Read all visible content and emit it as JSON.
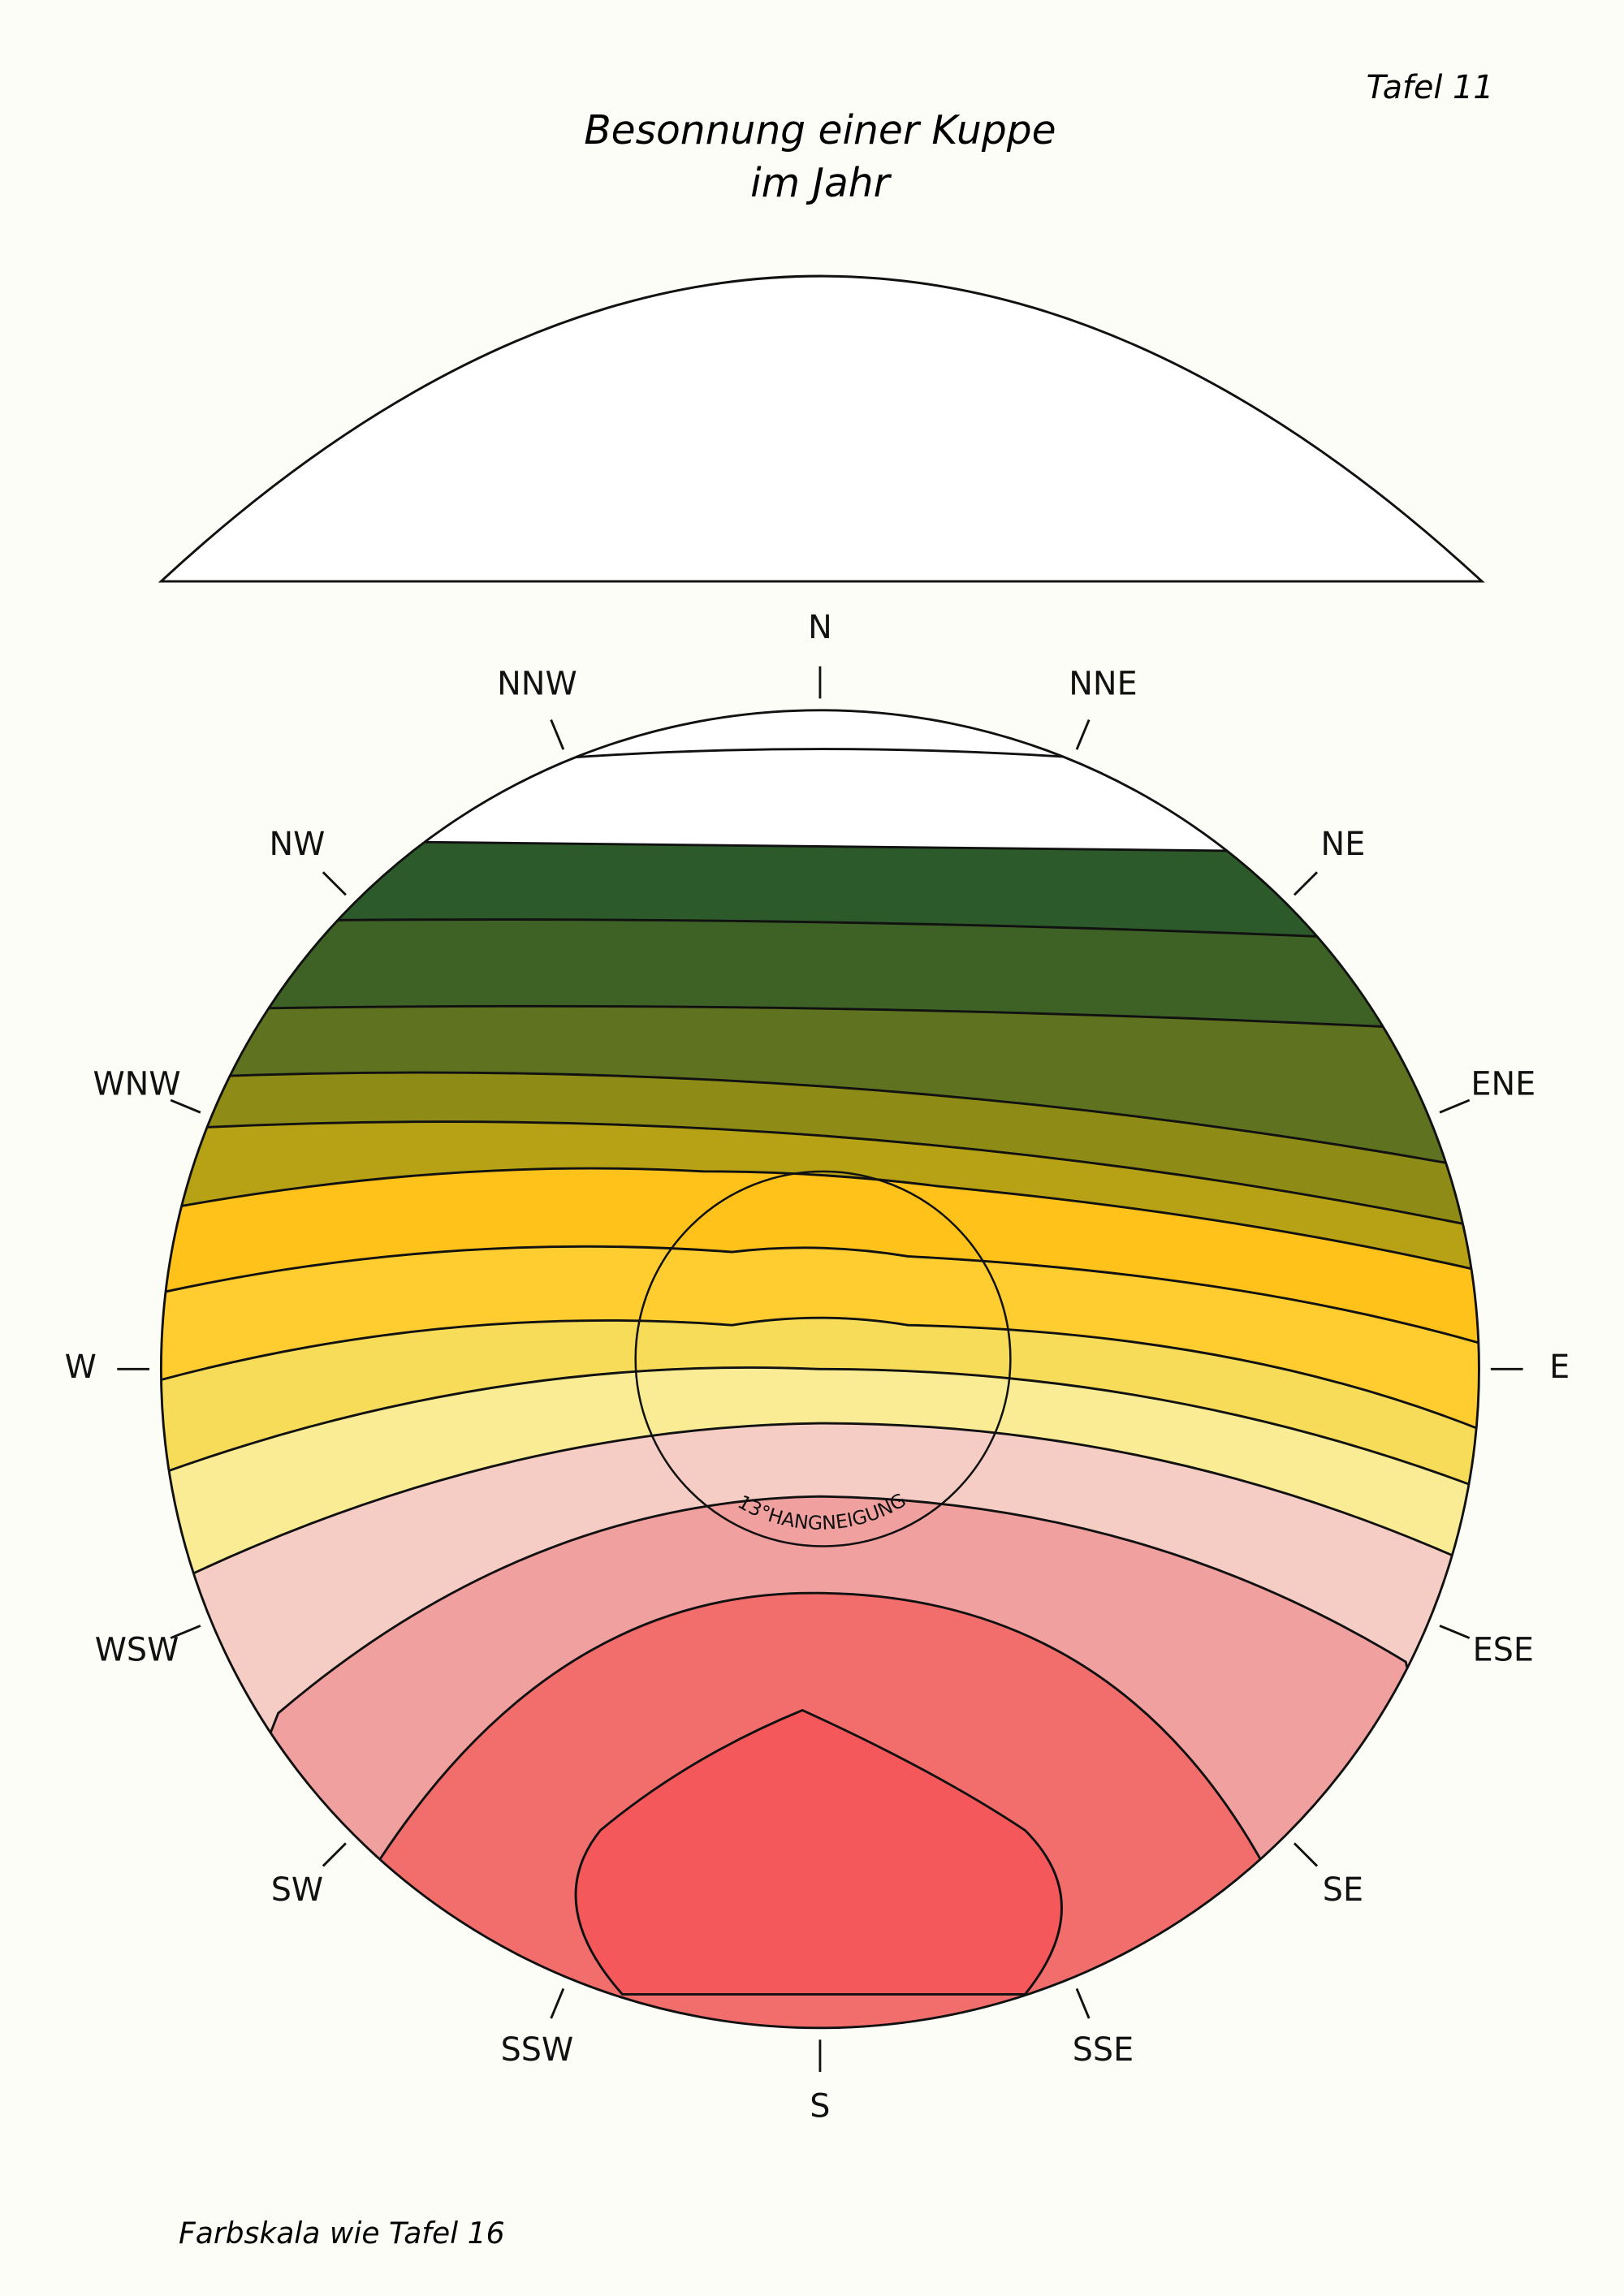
{
  "header": {
    "plate": "Tafel 11",
    "title": [
      "Besonnung einer Kuppe",
      "im Jahr"
    ]
  },
  "compass": [
    "N",
    "NNE",
    "NE",
    "ENE",
    "E",
    "ESE",
    "SE",
    "SSE",
    "S",
    "SSW",
    "SW",
    "WSW",
    "W",
    "WNW",
    "NW",
    "NNW"
  ],
  "inner_circle_label": "13°HANGNEIGUNG",
  "footer": "Farbskala wie Tafel 16"
}
